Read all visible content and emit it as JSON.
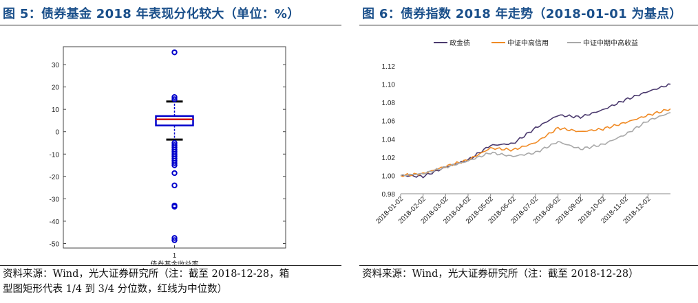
{
  "figures": [
    {
      "title": "图 5：债券基金 2018 年表现分化较大（单位：%）",
      "source_lines": [
        "资料来源：Wind，光大证券研究所（注：截至 2018-12-28，箱",
        "型图矩形代表 1/4 到 3/4 分位数，红线为中位数）"
      ]
    },
    {
      "title": "图 6：债券指数 2018 年走势（2018-01-01 为基点）",
      "source_lines": [
        "资料来源：Wind，光大证券研究所（注：截至 2018-12-28）"
      ]
    }
  ],
  "chart_data": [
    {
      "type": "box",
      "categories": [
        "1"
      ],
      "xlabel": "债券基金收益率",
      "ylim": [
        -52,
        38
      ],
      "yticks": [
        -50,
        -40,
        -30,
        -20,
        -10,
        0,
        10,
        20,
        30
      ],
      "box": {
        "q1": 2.8,
        "median": 5.5,
        "q3": 7.0,
        "whisker_low": -3.5,
        "whisker_high": 13.5
      },
      "outliers": [
        35.5,
        15.5,
        14.5,
        -5,
        -6,
        -7,
        -8,
        -9,
        -10,
        -11,
        -12,
        -13,
        -14,
        -15,
        -18.5,
        -24,
        -33,
        -33.5,
        -47.5,
        -48.5
      ],
      "colors": {
        "box": "#0000cc",
        "median": "#cc0000",
        "whisker_cap": "#000000",
        "outlier": "#0000cc"
      },
      "grid": false
    },
    {
      "type": "line",
      "legend_position": "top",
      "ylim": [
        0.98,
        1.12
      ],
      "yticks": [
        "0.98",
        "1.00",
        "1.02",
        "1.04",
        "1.06",
        "1.08",
        "1.10",
        "1.12"
      ],
      "x": [
        "2018-01-02",
        "2018-02-02",
        "2018-03-02",
        "2018-04-02",
        "2018-05-02",
        "2018-06-02",
        "2018-07-02",
        "2018-08-02",
        "2018-09-02",
        "2018-10-02",
        "2018-11-02",
        "2018-12-02",
        "2018-12-28"
      ],
      "series": [
        {
          "name": "政金债",
          "color": "#4b3a6e",
          "values": [
            1.0,
            0.999,
            1.009,
            1.017,
            1.033,
            1.035,
            1.052,
            1.066,
            1.064,
            1.072,
            1.083,
            1.092,
            1.1
          ]
        },
        {
          "name": "中证中高信用",
          "color": "#f08a24",
          "values": [
            1.0,
            1.002,
            1.01,
            1.017,
            1.03,
            1.028,
            1.036,
            1.052,
            1.048,
            1.051,
            1.058,
            1.066,
            1.073
          ]
        },
        {
          "name": "中证中期中高收益",
          "color": "#a8a8a8",
          "values": [
            1.0,
            1.002,
            1.009,
            1.016,
            1.025,
            1.021,
            1.025,
            1.037,
            1.029,
            1.034,
            1.045,
            1.06,
            1.069
          ]
        }
      ],
      "grid": false
    }
  ]
}
